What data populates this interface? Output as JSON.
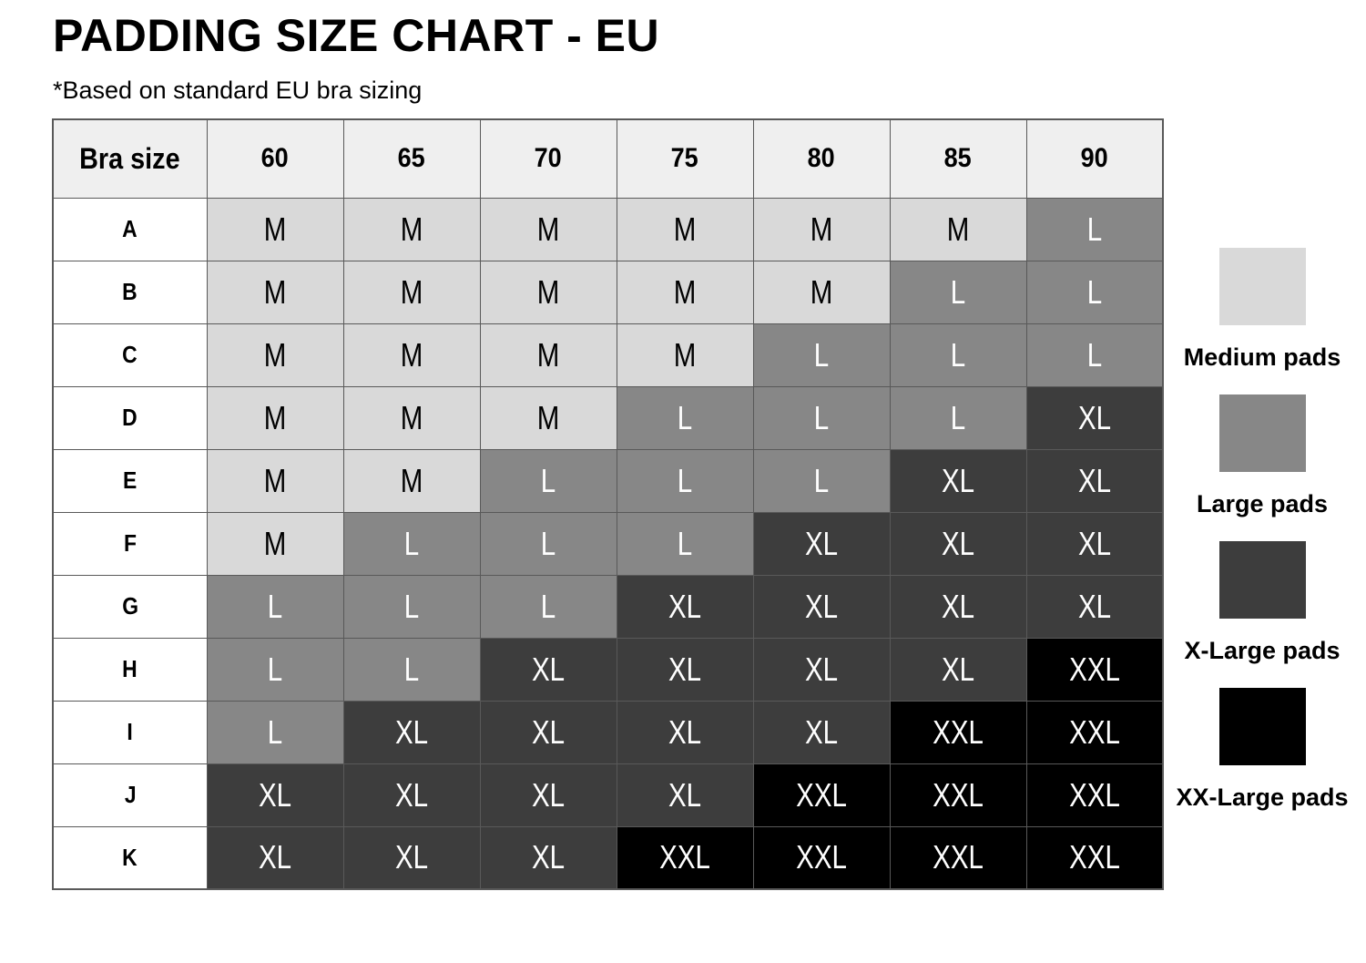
{
  "title": "PADDING SIZE CHART - EU",
  "subtitle": "*Based on standard EU bra sizing",
  "chart_data": {
    "type": "table",
    "corner_label": "Bra size",
    "columns": [
      "60",
      "65",
      "70",
      "75",
      "80",
      "85",
      "90"
    ],
    "rows": [
      {
        "label": "A",
        "values": [
          "M",
          "M",
          "M",
          "M",
          "M",
          "M",
          "L"
        ]
      },
      {
        "label": "B",
        "values": [
          "M",
          "M",
          "M",
          "M",
          "M",
          "L",
          "L"
        ]
      },
      {
        "label": "C",
        "values": [
          "M",
          "M",
          "M",
          "M",
          "L",
          "L",
          "L"
        ]
      },
      {
        "label": "D",
        "values": [
          "M",
          "M",
          "M",
          "L",
          "L",
          "L",
          "XL"
        ]
      },
      {
        "label": "E",
        "values": [
          "M",
          "M",
          "L",
          "L",
          "L",
          "XL",
          "XL"
        ]
      },
      {
        "label": "F",
        "values": [
          "M",
          "L",
          "L",
          "L",
          "XL",
          "XL",
          "XL"
        ]
      },
      {
        "label": "G",
        "values": [
          "L",
          "L",
          "L",
          "XL",
          "XL",
          "XL",
          "XL"
        ]
      },
      {
        "label": "H",
        "values": [
          "L",
          "L",
          "XL",
          "XL",
          "XL",
          "XL",
          "XXL"
        ]
      },
      {
        "label": "I",
        "values": [
          "L",
          "XL",
          "XL",
          "XL",
          "XL",
          "XXL",
          "XXL"
        ]
      },
      {
        "label": "J",
        "values": [
          "XL",
          "XL",
          "XL",
          "XL",
          "XXL",
          "XXL",
          "XXL"
        ]
      },
      {
        "label": "K",
        "values": [
          "XL",
          "XL",
          "XL",
          "XXL",
          "XXL",
          "XXL",
          "XXL"
        ]
      }
    ]
  },
  "value_styles": {
    "M": {
      "bg": "#d9d9d9",
      "text": "#000000"
    },
    "L": {
      "bg": "#878787",
      "text": "#ffffff"
    },
    "XL": {
      "bg": "#3d3d3d",
      "text": "#ffffff"
    },
    "XXL": {
      "bg": "#000000",
      "text": "#ffffff"
    }
  },
  "legend": [
    {
      "label": "Medium pads",
      "size": "M",
      "color": "#d9d9d9"
    },
    {
      "label": "Large pads",
      "size": "L",
      "color": "#878787"
    },
    {
      "label": "X-Large pads",
      "size": "XL",
      "color": "#3d3d3d"
    },
    {
      "label": "XX-Large pads",
      "size": "XXL",
      "color": "#000000"
    }
  ],
  "table_colors": {
    "header_bg": "#efefef",
    "border": "#595959",
    "row_header_bg": "#ffffff"
  }
}
